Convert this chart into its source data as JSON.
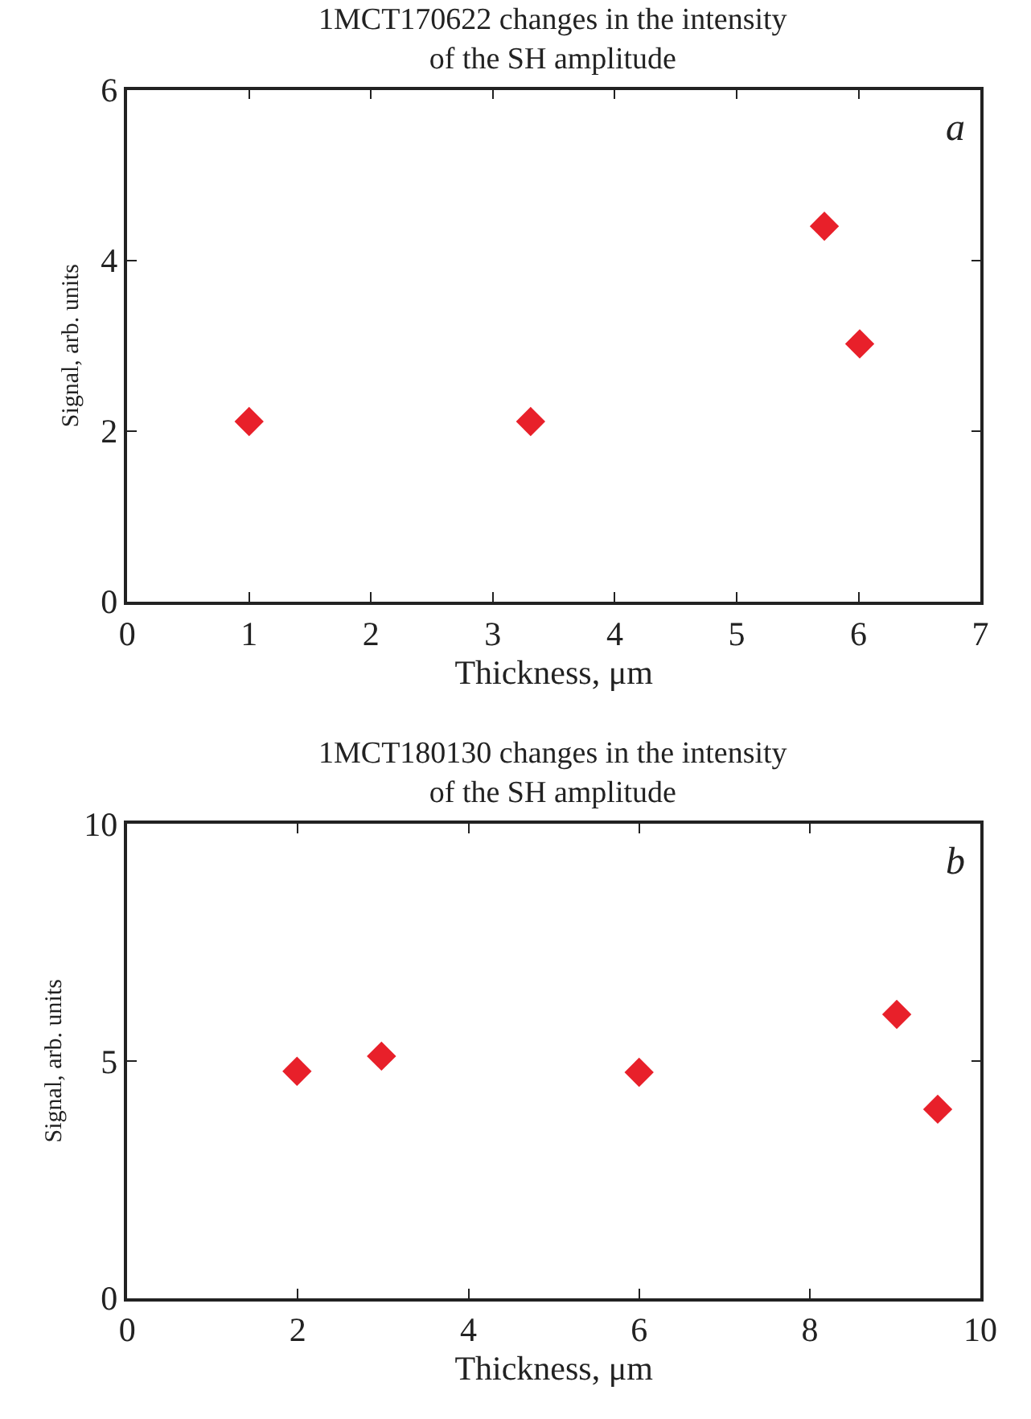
{
  "chart_data": [
    {
      "type": "scatter",
      "title": "1MCT170622 changes in the intensity\nof the SH amplitude",
      "xlabel": "Thickness, μm",
      "ylabel": "Signal, arb. units",
      "annotations": [
        "a"
      ],
      "series": [
        {
          "color": "#e8202a",
          "x": [
            1.0,
            3.31,
            5.72,
            6.01
          ],
          "values": [
            2.11,
            2.11,
            4.4,
            3.02
          ]
        }
      ],
      "xlim": [
        0,
        7
      ],
      "xticks": [
        0,
        1,
        2,
        3,
        4,
        5,
        6,
        7
      ],
      "ylim": [
        0,
        6
      ],
      "yticks": [
        0,
        2,
        4,
        6
      ],
      "marker": "diamond"
    },
    {
      "type": "scatter",
      "title": "1MCT180130 changes in the intensity\nof the SH amplitude",
      "xlabel": "Thickness, μm",
      "ylabel": "Signal, arb. units",
      "annotations": [
        "b"
      ],
      "series": [
        {
          "color": "#e8202a",
          "x": [
            1.99,
            2.98,
            6.0,
            9.02,
            9.5
          ],
          "values": [
            4.78,
            5.1,
            4.76,
            5.98,
            3.98
          ]
        }
      ],
      "xlim": [
        0,
        10
      ],
      "xticks": [
        0,
        2,
        4,
        6,
        8,
        10
      ],
      "ylim": [
        0,
        10
      ],
      "yticks": [
        0,
        5,
        10
      ],
      "marker": "diamond"
    }
  ]
}
